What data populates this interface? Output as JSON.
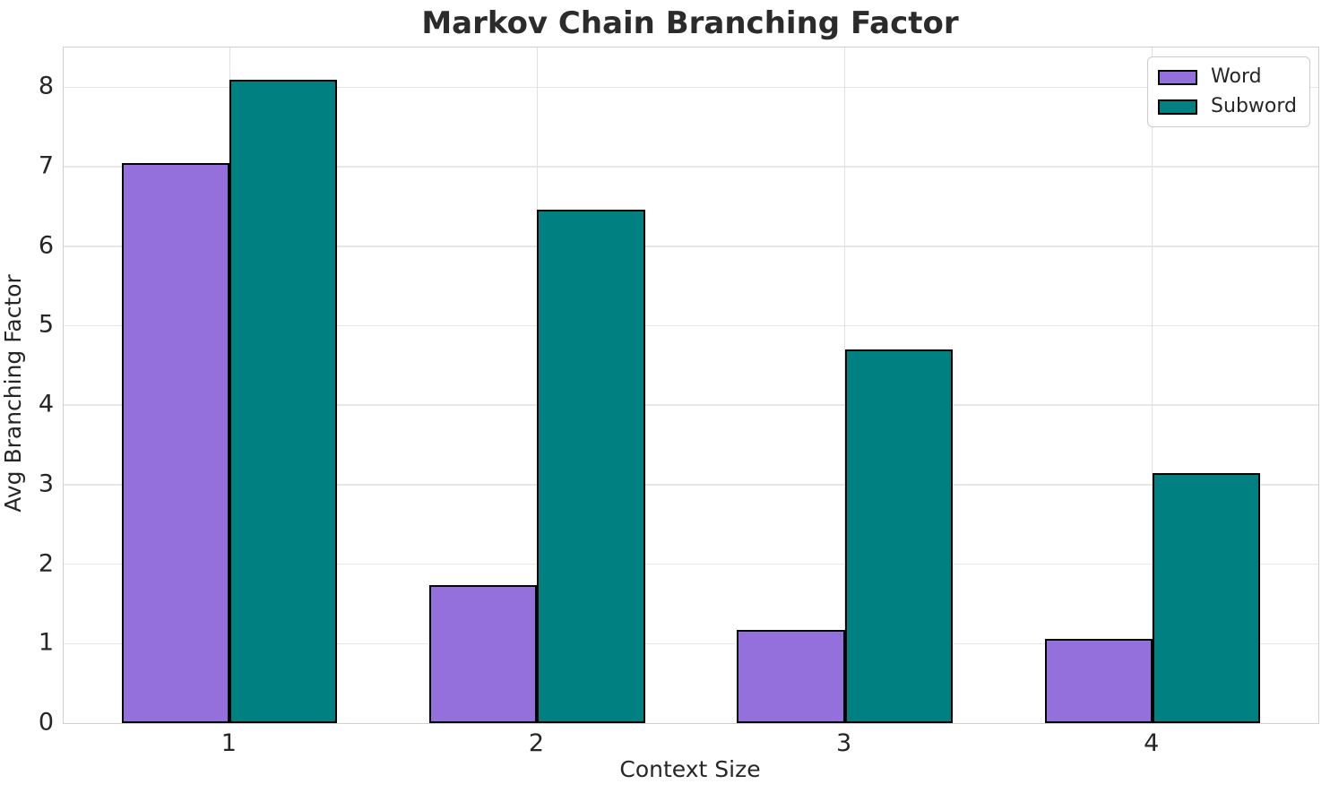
{
  "chart_data": {
    "type": "bar",
    "title": "Markov Chain Branching Factor",
    "xlabel": "Context Size",
    "ylabel": "Avg Branching Factor",
    "categories": [
      "1",
      "2",
      "3",
      "4"
    ],
    "series": [
      {
        "name": "Word",
        "color": "#9370db",
        "values": [
          7.05,
          1.74,
          1.17,
          1.06
        ]
      },
      {
        "name": "Subword",
        "color": "#008080",
        "values": [
          8.09,
          6.46,
          4.7,
          3.15
        ]
      }
    ],
    "ylim": [
      0,
      8.5
    ],
    "yticks": [
      0,
      1,
      2,
      3,
      4,
      5,
      6,
      7,
      8
    ],
    "bar_edge_color": "#000000",
    "grid": true,
    "legend_position": "upper right",
    "colors": {
      "grid": "#e7e7e7",
      "spine": "#cfcfcf",
      "text": "#262626",
      "background": "#ffffff"
    }
  }
}
